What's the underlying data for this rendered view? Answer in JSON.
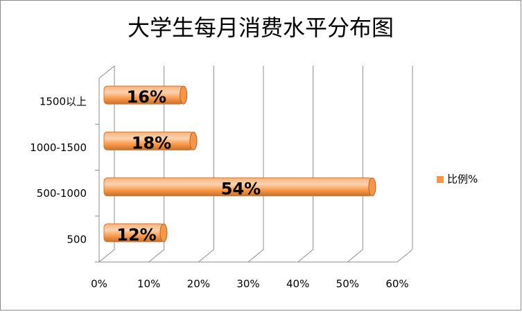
{
  "chart_data": {
    "type": "bar",
    "orientation": "horizontal",
    "title": "大学生每月消费水平分布图",
    "categories": [
      "500",
      "500-1000",
      "1000-1500",
      "1500以上"
    ],
    "series": [
      {
        "name": "比例%",
        "color": "#f79646",
        "values": [
          12,
          54,
          18,
          16
        ],
        "value_labels": [
          "12%",
          "54%",
          "18%",
          "16%"
        ]
      }
    ],
    "xlim": [
      0,
      60
    ],
    "xticks": [
      {
        "value": 0,
        "label": "0%"
      },
      {
        "value": 10,
        "label": "10%"
      },
      {
        "value": 20,
        "label": "20%"
      },
      {
        "value": 30,
        "label": "30%"
      },
      {
        "value": 40,
        "label": "40%"
      },
      {
        "value": 50,
        "label": "50%"
      },
      {
        "value": 60,
        "label": "60%"
      }
    ],
    "grid": true,
    "legend": "right"
  }
}
